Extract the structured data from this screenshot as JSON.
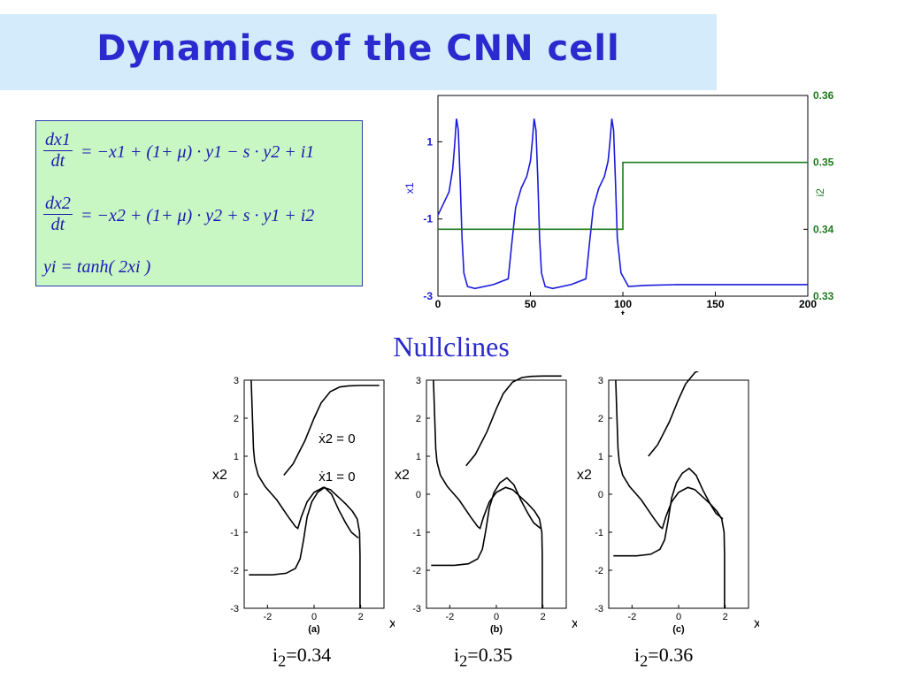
{
  "slide": {
    "title": "Dynamics of the CNN cell",
    "nullclines_title": "Nullclines"
  },
  "equations": {
    "eq1_num": "dx1",
    "eq1_den": "dt",
    "eq1_rhs": "= −x1 + (1+ μ) · y1 − s · y2 + i1",
    "eq2_num": "dx2",
    "eq2_den": "dt",
    "eq2_rhs": "= −x2 + (1+ μ) · y2 + s · y1 + i2",
    "eq3": "yi = tanh( 2xi )"
  },
  "colors": {
    "blue_trace": "#1a1adb",
    "green_trace": "#1e7a1e",
    "title_blue": "#2a2acf",
    "eq_bg": "#c9f7c3",
    "title_bg": "#d3ebfa"
  },
  "chart_data": [
    {
      "type": "line",
      "xlabel": "t",
      "ylabel": "x1",
      "y2label": "i2",
      "xlim": [
        0,
        200
      ],
      "ylim": [
        -3,
        2.2
      ],
      "y2lim": [
        0.33,
        0.36
      ],
      "xticks": [
        0,
        50,
        100,
        150,
        200
      ],
      "yticks": [
        -3,
        -1,
        1
      ],
      "y2ticks": [
        0.33,
        0.34,
        0.35,
        0.36
      ],
      "series": [
        {
          "axis": "left",
          "x": [
            0,
            3,
            6,
            8,
            9,
            10,
            11,
            12,
            13,
            14,
            16,
            20,
            30,
            38,
            40,
            42,
            45,
            48,
            50,
            51,
            52,
            53,
            54,
            55,
            56,
            58,
            62,
            72,
            80,
            82,
            84,
            87,
            90,
            92,
            93,
            94,
            95,
            96,
            97,
            99,
            103,
            112,
            130,
            160,
            200
          ],
          "y": [
            -0.9,
            -0.6,
            -0.3,
            0.3,
            0.9,
            1.6,
            1.3,
            0.0,
            -1.5,
            -2.4,
            -2.75,
            -2.8,
            -2.7,
            -2.55,
            -1.6,
            -0.7,
            -0.2,
            0.1,
            0.5,
            1.0,
            1.6,
            1.3,
            0.0,
            -1.5,
            -2.4,
            -2.75,
            -2.8,
            -2.7,
            -2.55,
            -1.6,
            -0.7,
            -0.2,
            0.1,
            0.5,
            1.0,
            1.6,
            1.3,
            0.0,
            -1.5,
            -2.4,
            -2.75,
            -2.72,
            -2.7,
            -2.7,
            -2.7
          ]
        },
        {
          "axis": "right",
          "x": [
            0,
            100,
            100,
            200
          ],
          "y": [
            0.34,
            0.34,
            0.35,
            0.35
          ]
        }
      ]
    },
    {
      "type": "line",
      "panel_label": "(a)",
      "caption": "i2=0.34",
      "xlabel": "x1",
      "ylabel": "x2",
      "xlim": [
        -3,
        3
      ],
      "ylim": [
        -3,
        3
      ],
      "xticks": [
        -2,
        0,
        2
      ],
      "yticks": [
        -3,
        -2,
        -1,
        0,
        1,
        2,
        3
      ],
      "annotations": [
        "ẋ2 = 0",
        "ẋ1 = 0"
      ],
      "series": [
        {
          "x": [
            -2.7,
            -2.6,
            -2.55,
            -2.4,
            -2.1,
            -1.6,
            -1.1,
            -0.8,
            -0.7,
            -0.55,
            -0.3,
            0,
            0.4,
            0.7,
            1.0,
            1.35,
            1.65,
            1.85,
            1.95,
            1.97,
            1.97,
            1.97
          ],
          "y": [
            3.0,
            1.2,
            0.85,
            0.5,
            0.2,
            -0.15,
            -0.6,
            -0.85,
            -0.9,
            -0.6,
            -0.2,
            0.05,
            0.18,
            0.12,
            -0.05,
            -0.25,
            -0.45,
            -0.65,
            -1.0,
            -1.6,
            -2.2,
            -3.0
          ]
        },
        {
          "x": [
            -2.8,
            -1.8,
            -1.2,
            -0.8,
            -0.6,
            -0.45,
            -0.3,
            -0.1,
            0.15,
            0.45,
            0.75,
            1.05,
            1.35,
            1.6,
            1.9
          ],
          "y": [
            -2.12,
            -2.12,
            -2.08,
            -1.95,
            -1.7,
            -1.2,
            -0.6,
            -0.2,
            0.05,
            0.18,
            0.0,
            -0.4,
            -0.75,
            -1.0,
            -1.15
          ]
        },
        {
          "x": [
            -1.3,
            -0.9,
            -0.4,
            0,
            0.3,
            0.7,
            1.1,
            1.5,
            2.0,
            2.8
          ],
          "y": [
            0.5,
            0.8,
            1.4,
            2.0,
            2.4,
            2.7,
            2.82,
            2.85,
            2.86,
            2.86
          ]
        }
      ]
    },
    {
      "type": "line",
      "panel_label": "(b)",
      "caption": "i2=0.35",
      "xlabel": "x1",
      "ylabel": "x2",
      "xlim": [
        -3,
        3
      ],
      "ylim": [
        -3,
        3
      ],
      "xticks": [
        -2,
        0,
        2
      ],
      "yticks": [
        -3,
        -2,
        -1,
        0,
        1,
        2,
        3
      ]
    },
    {
      "type": "line",
      "panel_label": "(c)",
      "caption": "i2=0.36",
      "xlabel": "x1",
      "ylabel": "x2",
      "xlim": [
        -3,
        3
      ],
      "ylim": [
        -3,
        3
      ],
      "xticks": [
        -2,
        0,
        2
      ],
      "yticks": [
        -3,
        -2,
        -1,
        0,
        1,
        2,
        3
      ]
    }
  ]
}
